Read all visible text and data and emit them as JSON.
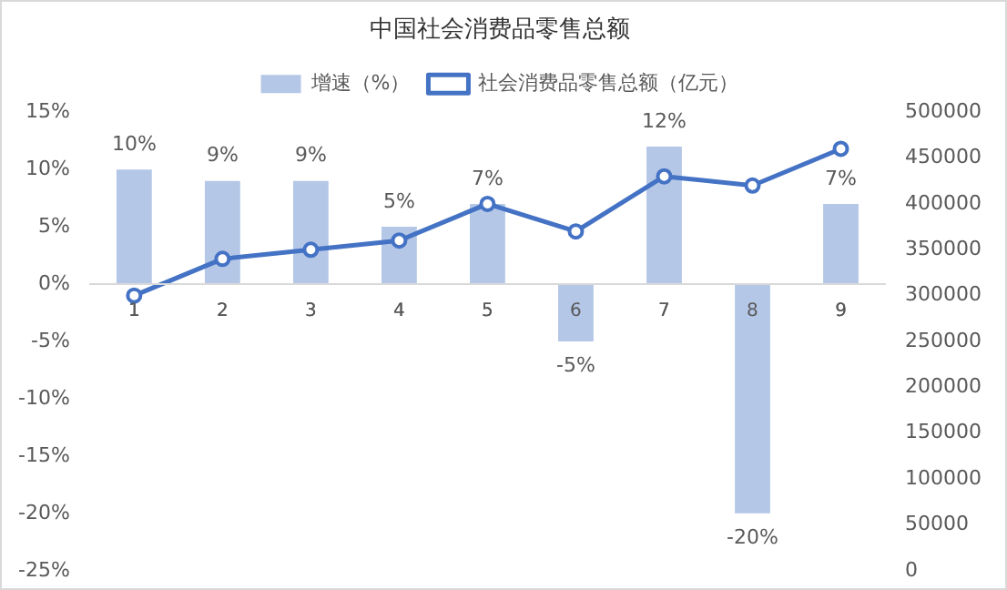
{
  "chart_data": {
    "type": "bar",
    "title": "中国社会消费品零售总额",
    "categories": [
      "1",
      "2",
      "3",
      "4",
      "5",
      "6",
      "7",
      "8",
      "9"
    ],
    "series": [
      {
        "name": "增速（%）",
        "color": "#b4c7e7",
        "values": [
          10,
          9,
          9,
          5,
          7,
          -5,
          12,
          -20,
          7
        ],
        "value_labels": [
          "10%",
          "9%",
          "9%",
          "5%",
          "7%",
          "-5%",
          "12%",
          "-20%",
          "7%"
        ]
      },
      {
        "name": "社会消费品零售总额（亿元）",
        "type": "line",
        "color": "#4472c4",
        "axis": "y2",
        "marker": "circle",
        "values": [
          300000,
          340000,
          350000,
          360000,
          400000,
          370000,
          430000,
          420000,
          460000
        ]
      }
    ],
    "ylim": [
      -25,
      15
    ],
    "yticks": [
      {
        "value": -25,
        "label": "-25%"
      },
      {
        "value": -20,
        "label": "-20%"
      },
      {
        "value": -15,
        "label": "-15%"
      },
      {
        "value": -10,
        "label": "-10%"
      },
      {
        "value": -5,
        "label": "-5%"
      },
      {
        "value": 0,
        "label": "0%"
      },
      {
        "value": 5,
        "label": "5%"
      },
      {
        "value": 10,
        "label": "10%"
      },
      {
        "value": 15,
        "label": "15%"
      }
    ],
    "y2lim": [
      0,
      500000
    ],
    "y2ticks": [
      0,
      50000,
      100000,
      150000,
      200000,
      250000,
      300000,
      350000,
      400000,
      450000,
      500000
    ],
    "grid": false,
    "legend": "top"
  }
}
